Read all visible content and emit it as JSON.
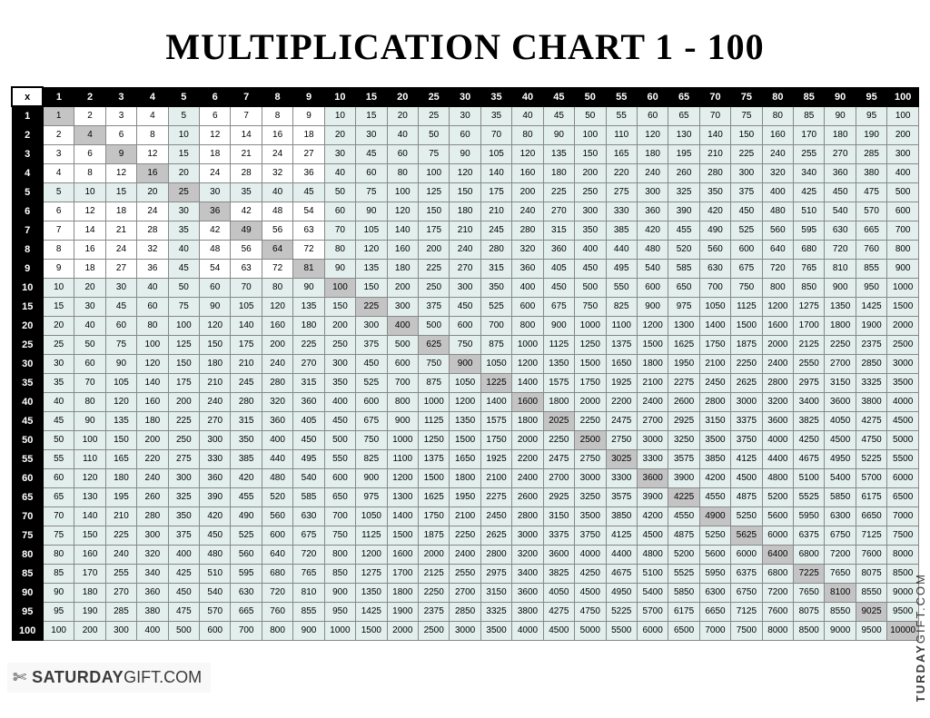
{
  "title": "MULTIPLICATION CHART   1 - 100",
  "corner_label": "x",
  "factors": [
    1,
    2,
    3,
    4,
    5,
    6,
    7,
    8,
    9,
    10,
    15,
    20,
    25,
    30,
    35,
    40,
    45,
    50,
    55,
    60,
    65,
    70,
    75,
    80,
    85,
    90,
    95,
    100
  ],
  "tint_color": "#e2efec",
  "diag_color": "#c4c4c4",
  "header_bg": "#000000",
  "header_fg": "#ffffff",
  "cell_border": "#888888",
  "watermark_left": {
    "icon": "✄",
    "bold": "SATURDAY",
    "light": "GIFT.COM"
  },
  "watermark_right": {
    "bold": "SATURDAY",
    "light": "GIFT.COM"
  }
}
